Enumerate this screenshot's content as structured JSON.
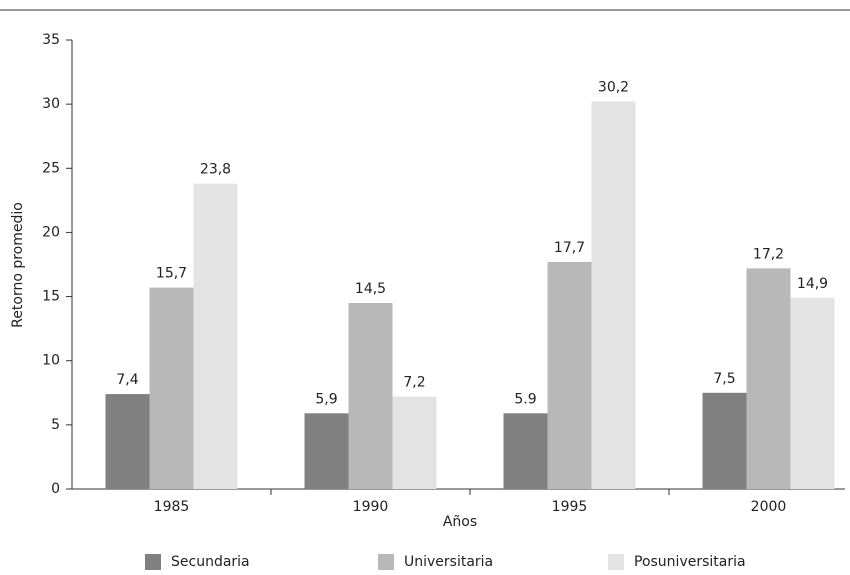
{
  "chart_data": {
    "type": "bar",
    "categories": [
      "1985",
      "1990",
      "1995",
      "2000"
    ],
    "xlabel": "Años",
    "ylabel": "Retorno promedio",
    "ylim": [
      0,
      35
    ],
    "yticks": [
      0,
      5,
      10,
      15,
      20,
      25,
      30,
      35
    ],
    "legend": "bottom",
    "series": [
      {
        "name": "Secundaria",
        "color": "#808080",
        "values": [
          7.4,
          5.9,
          5.9,
          7.5
        ],
        "value_labels": [
          "7,4",
          "5,9",
          "5.9",
          "7,5"
        ]
      },
      {
        "name": "Universitaria",
        "color": "#b8b8b8",
        "values": [
          15.7,
          14.5,
          17.7,
          17.2
        ],
        "value_labels": [
          "15,7",
          "14,5",
          "17,7",
          "17,2"
        ]
      },
      {
        "name": "Posuniversitaria",
        "color": "#e3e3e3",
        "values": [
          23.8,
          7.2,
          30.2,
          14.9
        ],
        "value_labels": [
          "23,8",
          "7,2",
          "30,2",
          "14,9"
        ]
      }
    ]
  }
}
